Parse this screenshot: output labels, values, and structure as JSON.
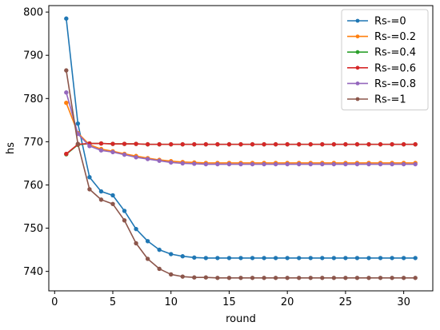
{
  "chart_data": {
    "type": "line",
    "xlabel": "round",
    "ylabel": "hs",
    "xlim": [
      -0.5,
      32.5
    ],
    "ylim": [
      735.5,
      801.5
    ],
    "xticks": [
      0,
      5,
      10,
      15,
      20,
      25,
      30
    ],
    "yticks": [
      740,
      750,
      760,
      770,
      780,
      790,
      800
    ],
    "grid": false,
    "legend_position": "top-right",
    "x": [
      1,
      2,
      3,
      4,
      5,
      6,
      7,
      8,
      9,
      10,
      11,
      12,
      13,
      14,
      15,
      16,
      17,
      18,
      19,
      20,
      21,
      22,
      23,
      24,
      25,
      26,
      27,
      28,
      29,
      30,
      31
    ],
    "series": [
      {
        "name": "Rs-=0",
        "color": "#1f77b4",
        "values": [
          798.5,
          774.2,
          761.8,
          758.5,
          757.6,
          754.0,
          749.8,
          747.0,
          745.0,
          744.0,
          743.5,
          743.2,
          743.1,
          743.1,
          743.1,
          743.1,
          743.1,
          743.1,
          743.1,
          743.1,
          743.1,
          743.1,
          743.1,
          743.1,
          743.1,
          743.1,
          743.1,
          743.1,
          743.1,
          743.1,
          743.1
        ]
      },
      {
        "name": "Rs-=0.2",
        "color": "#ff7f0e",
        "values": [
          779.0,
          772.0,
          769.3,
          768.3,
          767.8,
          767.2,
          766.7,
          766.2,
          765.8,
          765.5,
          765.3,
          765.2,
          765.1,
          765.1,
          765.1,
          765.1,
          765.1,
          765.1,
          765.1,
          765.1,
          765.1,
          765.1,
          765.1,
          765.1,
          765.1,
          765.1,
          765.1,
          765.1,
          765.1,
          765.1,
          765.1
        ]
      },
      {
        "name": "Rs-=0.4",
        "color": "#2ca02c",
        "values": [
          767.1,
          769.3,
          769.6,
          769.6,
          769.5,
          769.5,
          769.5,
          769.4,
          769.4,
          769.4,
          769.4,
          769.4,
          769.4,
          769.4,
          769.4,
          769.4,
          769.4,
          769.4,
          769.4,
          769.4,
          769.4,
          769.4,
          769.4,
          769.4,
          769.4,
          769.4,
          769.4,
          769.4,
          769.4,
          769.4,
          769.4
        ]
      },
      {
        "name": "Rs-=0.6",
        "color": "#d62728",
        "values": [
          767.2,
          769.4,
          769.6,
          769.6,
          769.5,
          769.5,
          769.5,
          769.4,
          769.4,
          769.4,
          769.4,
          769.4,
          769.4,
          769.4,
          769.4,
          769.4,
          769.4,
          769.4,
          769.4,
          769.4,
          769.4,
          769.4,
          769.4,
          769.4,
          769.4,
          769.4,
          769.4,
          769.4,
          769.4,
          769.4,
          769.4
        ]
      },
      {
        "name": "Rs-=0.8",
        "color": "#9467bd",
        "values": [
          781.4,
          771.8,
          769.0,
          768.0,
          767.6,
          767.0,
          766.4,
          766.0,
          765.6,
          765.2,
          765.0,
          764.9,
          764.8,
          764.8,
          764.8,
          764.8,
          764.8,
          764.8,
          764.8,
          764.8,
          764.8,
          764.8,
          764.8,
          764.8,
          764.8,
          764.8,
          764.8,
          764.8,
          764.8,
          764.8,
          764.8
        ]
      },
      {
        "name": "Rs-=1",
        "color": "#8c564b",
        "values": [
          786.5,
          769.5,
          759.0,
          756.6,
          755.6,
          751.8,
          746.5,
          742.9,
          740.6,
          739.3,
          738.8,
          738.6,
          738.6,
          738.5,
          738.5,
          738.5,
          738.5,
          738.5,
          738.5,
          738.5,
          738.5,
          738.5,
          738.5,
          738.5,
          738.5,
          738.5,
          738.5,
          738.5,
          738.5,
          738.5,
          738.5
        ]
      }
    ]
  }
}
